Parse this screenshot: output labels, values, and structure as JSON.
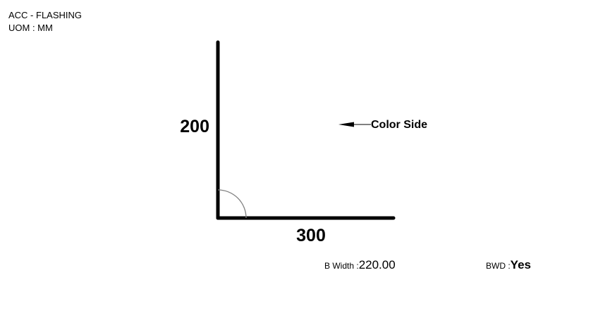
{
  "header": {
    "title": "ACC - FLASHING",
    "uom": "UOM : MM"
  },
  "diagram": {
    "vertical_length": "200",
    "horizontal_length": "300",
    "color_side_label": "Color Side"
  },
  "footer": {
    "b_width_label": "B Width :",
    "b_width_value": "220.00",
    "bwd_label": "BWD :",
    "bwd_value": "Yes"
  },
  "colors": {
    "line": "#000000",
    "angle_arc": "#808080",
    "background": "#ffffff"
  }
}
